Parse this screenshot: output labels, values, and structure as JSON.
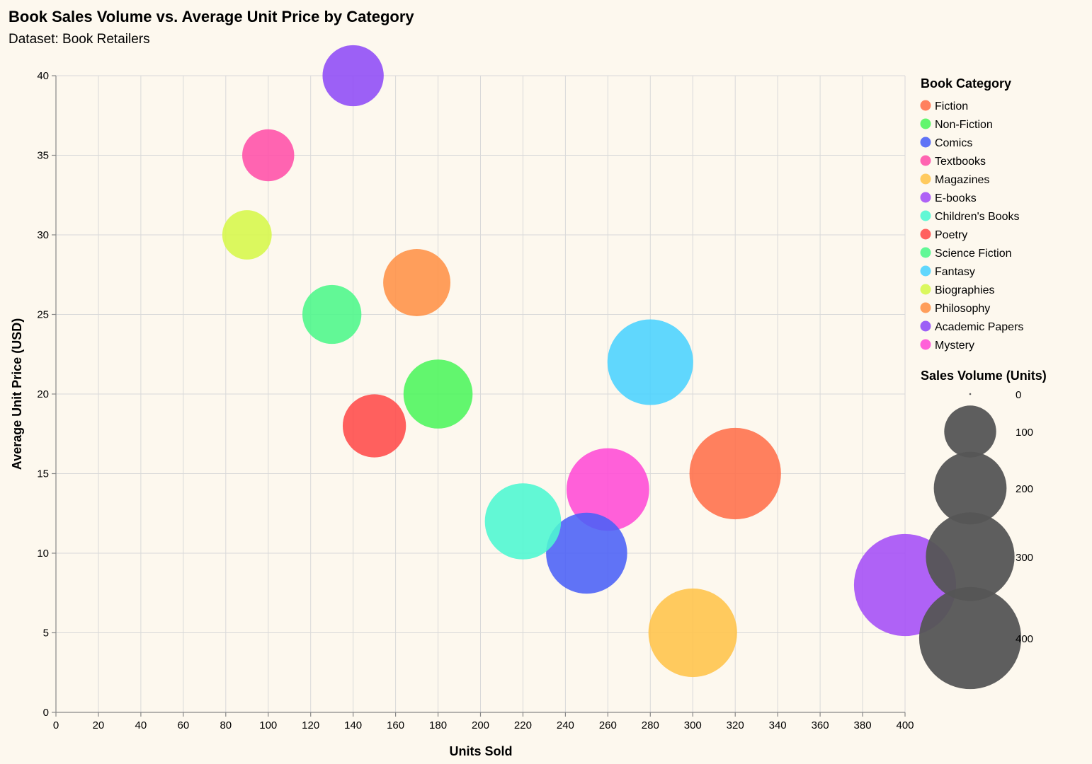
{
  "chart_data": {
    "type": "scatter",
    "title": "Book Sales Volume vs. Average Unit Price by Category",
    "subtitle": "Dataset: Book Retailers",
    "xlabel": "Units Sold",
    "ylabel": "Average Unit Price (USD)",
    "xlim": [
      0,
      400
    ],
    "ylim": [
      0,
      40
    ],
    "x_ticks": [
      0,
      20,
      40,
      60,
      80,
      100,
      120,
      140,
      160,
      180,
      200,
      220,
      240,
      260,
      280,
      300,
      320,
      340,
      360,
      380,
      400
    ],
    "y_ticks": [
      0,
      5,
      10,
      15,
      20,
      25,
      30,
      35,
      40
    ],
    "grid": true,
    "legend_position": "right",
    "color_legend_title": "Book Category",
    "size_legend_title": "Sales Volume (Units)",
    "size_legend_values": [
      0,
      100,
      200,
      300,
      400
    ],
    "points": [
      {
        "category": "Fiction",
        "x": 320,
        "y": 15,
        "size": 320,
        "color": "#ff6e4a"
      },
      {
        "category": "Non-Fiction",
        "x": 180,
        "y": 20,
        "size": 180,
        "color": "#4cf55c"
      },
      {
        "category": "Comics",
        "x": 250,
        "y": 10,
        "size": 250,
        "color": "#4a60f7"
      },
      {
        "category": "Textbooks",
        "x": 100,
        "y": 35,
        "size": 100,
        "color": "#ff4fa8"
      },
      {
        "category": "Magazines",
        "x": 300,
        "y": 5,
        "size": 300,
        "color": "#ffc34a"
      },
      {
        "category": "E-books",
        "x": 400,
        "y": 8,
        "size": 400,
        "color": "#a44cf7"
      },
      {
        "category": "Children's Books",
        "x": 220,
        "y": 12,
        "size": 220,
        "color": "#4cf7d2"
      },
      {
        "category": "Poetry",
        "x": 150,
        "y": 18,
        "size": 150,
        "color": "#ff4a4a"
      },
      {
        "category": "Science Fiction",
        "x": 130,
        "y": 25,
        "size": 130,
        "color": "#4cf78a"
      },
      {
        "category": "Fantasy",
        "x": 280,
        "y": 22,
        "size": 280,
        "color": "#4ad2ff"
      },
      {
        "category": "Biographies",
        "x": 90,
        "y": 30,
        "size": 90,
        "color": "#d6f74a"
      },
      {
        "category": "Philosophy",
        "x": 170,
        "y": 27,
        "size": 170,
        "color": "#ff9147"
      },
      {
        "category": "Academic Papers",
        "x": 140,
        "y": 40,
        "size": 140,
        "color": "#8e4af7"
      },
      {
        "category": "Mystery",
        "x": 260,
        "y": 14,
        "size": 260,
        "color": "#ff4ad6"
      }
    ]
  }
}
